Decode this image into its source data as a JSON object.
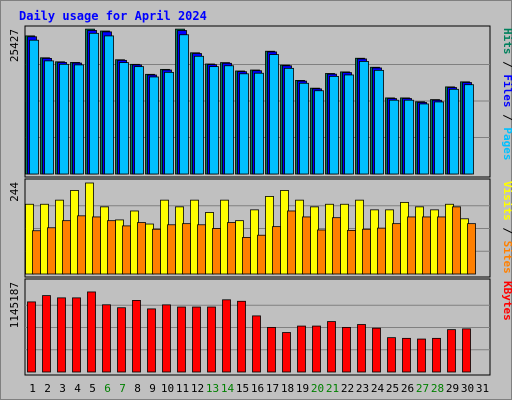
{
  "chart_data": {
    "type": "bar",
    "title": "Daily usage for April 2024",
    "categories": [
      "1",
      "2",
      "3",
      "4",
      "5",
      "6",
      "7",
      "8",
      "9",
      "10",
      "11",
      "12",
      "13",
      "14",
      "15",
      "16",
      "17",
      "18",
      "19",
      "20",
      "21",
      "22",
      "23",
      "24",
      "25",
      "26",
      "27",
      "28",
      "29",
      "30",
      "31"
    ],
    "weekend_day_indices": [
      5,
      6,
      12,
      13,
      19,
      20,
      26,
      27
    ],
    "colors": {
      "background": "#ffffff",
      "frame": "#c0c0c0",
      "plot": "#c0c0c0",
      "grid": "#808080",
      "title": "#0000ff",
      "weekday_label": "#000000",
      "weekend_label": "#008000",
      "hits": "#00805c",
      "files": "#0000ff",
      "pages": "#00c0ff",
      "visits": "#ffff00",
      "sites": "#ff8000",
      "kbytes": "#ff0000",
      "separator": "#000000"
    },
    "panels": [
      {
        "ymax_label": "25427",
        "ylim": [
          0,
          25427
        ],
        "side_labels": [
          {
            "text": "Hits",
            "color": "#00805c"
          },
          {
            "text": " / ",
            "color": "#000000"
          },
          {
            "text": "Files",
            "color": "#0000ff"
          },
          {
            "text": " / ",
            "color": "#000000"
          },
          {
            "text": "Pages",
            "color": "#00c0ff"
          }
        ],
        "series": [
          {
            "name": "Hits",
            "color": "#00805c",
            "values": [
              24055,
              20240,
              19540,
              19430,
              25230,
              24900,
              19900,
              19100,
              17360,
              18220,
              25230,
              21110,
              19160,
              19400,
              17940,
              18110,
              21380,
              18960,
              16300,
              14950,
              17510,
              17780,
              20160,
              18590,
              13250,
              13250,
              12570,
              12960,
              15170,
              16050,
              0
            ]
          },
          {
            "name": "Files",
            "color": "#0000ff",
            "values": [
              23900,
              20130,
              19430,
              19320,
              25000,
              24750,
              19790,
              19000,
              17240,
              18110,
              24990,
              20980,
              19050,
              19280,
              17820,
              17990,
              21260,
              18850,
              16180,
              14830,
              17390,
              17660,
              20040,
              18470,
              13140,
              13140,
              12460,
              12840,
              15060,
              15930,
              0
            ]
          },
          {
            "name": "Pages",
            "color": "#00c0ff",
            "values": [
              23300,
              19700,
              19100,
              19000,
              24500,
              24050,
              19400,
              18700,
              16900,
              17700,
              24250,
              20500,
              18700,
              18850,
              17450,
              17550,
              20800,
              18400,
              15800,
              14500,
              17000,
              17250,
              19600,
              18050,
              12850,
              12850,
              12200,
              12550,
              14750,
              15550,
              0
            ]
          }
        ]
      },
      {
        "ymax_label": "244",
        "ylim": [
          0,
          244
        ],
        "side_labels": [
          {
            "text": "Visits",
            "color": "#ffff00"
          },
          {
            "text": " / ",
            "color": "#000000"
          },
          {
            "text": "Sites",
            "color": "#ff8000"
          }
        ],
        "series": [
          {
            "name": "Visits",
            "color": "#ffff00",
            "values": [
              187,
              187,
              198,
              224,
              244,
              180,
              145,
              169,
              134,
              198,
              180,
              198,
              165,
              198,
              143,
              172,
              208,
              224,
              198,
              180,
              187,
              187,
              198,
              172,
              172,
              192,
              180,
              172,
              187,
              148,
              0
            ]
          },
          {
            "name": "Sites",
            "color": "#ff8000",
            "values": [
              116,
              124,
              143,
              156,
              153,
              143,
              129,
              138,
              120,
              132,
              135,
              132,
              122,
              138,
              98,
              104,
              127,
              169,
              153,
              118,
              151,
              117,
              120,
              123,
              135,
              153,
              153,
              153,
              180,
              135,
              0
            ]
          }
        ]
      },
      {
        "ymax_label": "1145187",
        "ylim": [
          0,
          1145187
        ],
        "side_labels": [
          {
            "text": "KBytes",
            "color": "#ff0000"
          }
        ],
        "series": [
          {
            "name": "KBytes",
            "color": "#ff0000",
            "values": [
              902000,
              983000,
              954000,
              954000,
              1030000,
              865000,
              827000,
              921000,
              812000,
              864000,
              836000,
              836000,
              836000,
              929000,
              910000,
              722000,
              574000,
              508000,
              591000,
              591000,
              649000,
              574000,
              611000,
              564000,
              442000,
              433000,
              424000,
              433000,
              545000,
              555000,
              0
            ]
          }
        ]
      }
    ]
  }
}
